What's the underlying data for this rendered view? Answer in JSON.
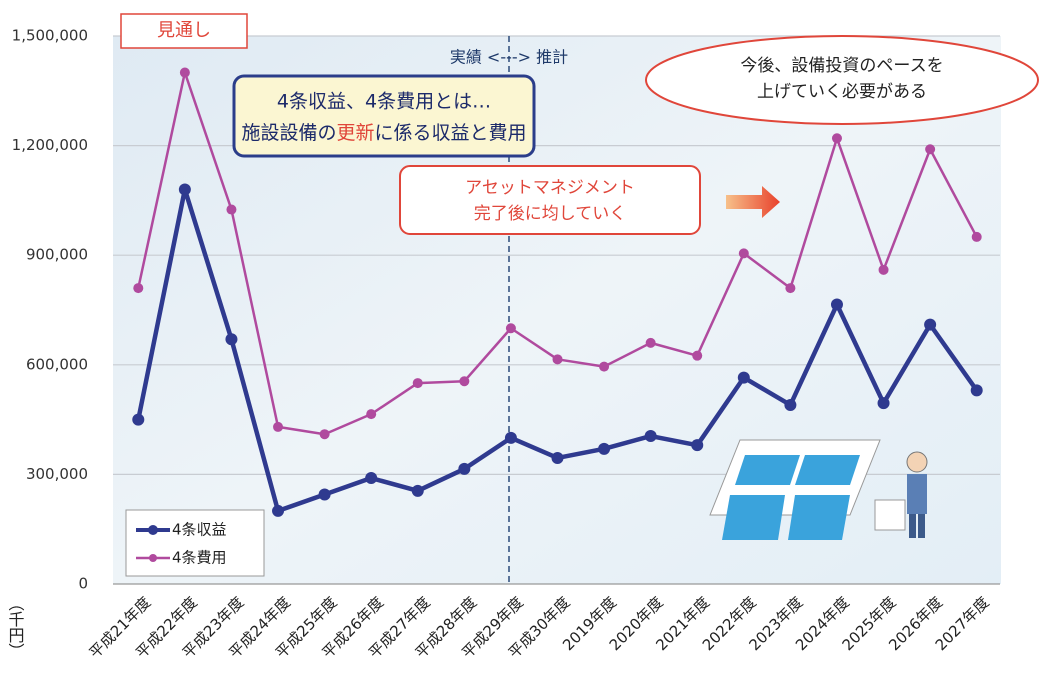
{
  "chart_data": {
    "type": "line",
    "categories": [
      "平成21年度",
      "平成22年度",
      "平成23年度",
      "平成24年度",
      "平成25年度",
      "平成26年度",
      "平成27年度",
      "平成28年度",
      "平成29年度",
      "平成30年度",
      "2019年度",
      "2020年度",
      "2021年度",
      "2022年度",
      "2023年度",
      "2024年度",
      "2025年度",
      "2026年度",
      "2027年度"
    ],
    "series": [
      {
        "name": "4条収益",
        "color": "#2f3a8f",
        "values": [
          450000,
          1080000,
          670000,
          200000,
          245000,
          290000,
          255000,
          315000,
          400000,
          345000,
          370000,
          405000,
          380000,
          565000,
          490000,
          765000,
          495000,
          710000,
          530000
        ]
      },
      {
        "name": "4条費用",
        "color": "#b04a9e",
        "values": [
          810000,
          1400000,
          1025000,
          430000,
          410000,
          465000,
          550000,
          555000,
          700000,
          615000,
          595000,
          660000,
          625000,
          905000,
          810000,
          1220000,
          860000,
          1190000,
          950000
        ]
      }
    ],
    "ylim": [
      0,
      1500000
    ],
    "yticks": [
      0,
      {
        "value": 300000,
        "label": "300,000"
      },
      {
        "value": 600000,
        "label": "600,000"
      },
      {
        "value": 900000,
        "label": "900,000"
      },
      {
        "value": 1200000,
        "label": "1,200,000"
      },
      {
        "value": 1500000,
        "label": "1,500,000"
      }
    ],
    "y_label": "（千円）",
    "grid": true,
    "legend": "lower left",
    "annotations": {
      "outlook": "見通し",
      "period": "実績 <-‐-> 推計",
      "definition": {
        "line1": "4条収益、4条費用とは…",
        "line2_before": "施設設備の",
        "line2_red": "更新",
        "line2_after": "に係る収益と費用"
      },
      "asset": {
        "line1": "アセットマネジメント",
        "line2": "完了後に均していく"
      },
      "pace": {
        "line1": "今後、設備投資のペースを",
        "line2": "上げていく必要がある"
      }
    }
  }
}
